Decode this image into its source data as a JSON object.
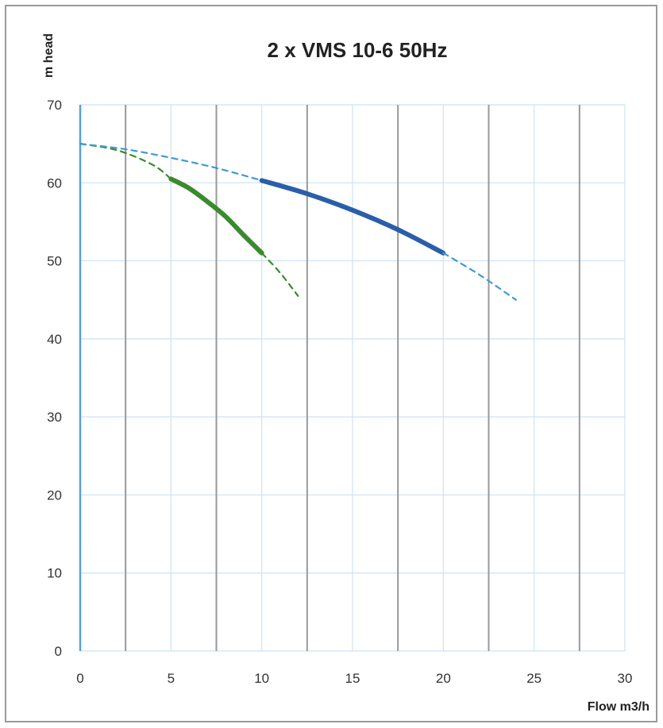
{
  "chart_data": {
    "type": "line",
    "title": "2 x VMS  10-6 50Hz",
    "xlabel": "Flow m3/h",
    "ylabel": "m head",
    "xlim": [
      0,
      30
    ],
    "ylim": [
      0,
      70
    ],
    "x_ticks": [
      "0",
      "5",
      "10",
      "15",
      "20",
      "25",
      "30"
    ],
    "y_ticks": [
      "0",
      "10",
      "20",
      "30",
      "40",
      "50",
      "60",
      "70"
    ],
    "grid": true,
    "legend": false,
    "colors": {
      "green": "#3a8a2e",
      "blue": "#2a5ea8",
      "blue_dashed": "#3f9bd0",
      "minor_grid": "#cfe2f3",
      "major_grid": "#999999",
      "y_axis": "#5aa0dc"
    },
    "series": [
      {
        "style": "dashed",
        "color": "green",
        "x": [
          0,
          2,
          4,
          5
        ],
        "y": [
          65,
          64.2,
          62.3,
          60.5
        ]
      },
      {
        "style": "solid",
        "color": "green",
        "x": [
          5,
          6,
          7,
          8,
          9,
          10
        ],
        "y": [
          60.5,
          59.3,
          57.6,
          55.7,
          53.3,
          51
        ]
      },
      {
        "style": "dashed",
        "color": "green",
        "x": [
          10,
          11,
          12
        ],
        "y": [
          51,
          48.5,
          45.5
        ]
      },
      {
        "style": "dashed",
        "color": "blue_dashed",
        "x": [
          0,
          2.5,
          5,
          7.5,
          10
        ],
        "y": [
          65,
          64.3,
          63.2,
          61.9,
          60.3
        ]
      },
      {
        "style": "solid",
        "color": "blue",
        "x": [
          10,
          12.5,
          15,
          17.5,
          20
        ],
        "y": [
          60.3,
          58.6,
          56.5,
          54,
          51
        ]
      },
      {
        "style": "dashed",
        "color": "blue_dashed",
        "x": [
          20,
          22,
          24
        ],
        "y": [
          51,
          48.2,
          45
        ]
      }
    ]
  }
}
